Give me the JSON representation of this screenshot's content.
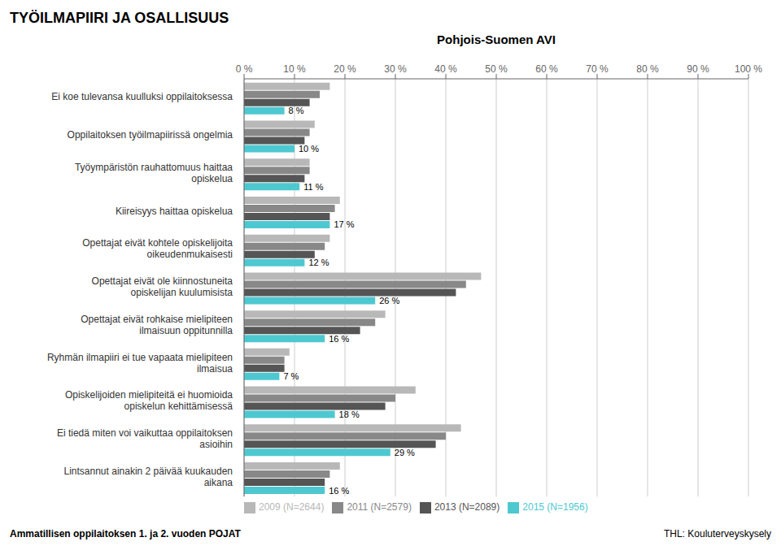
{
  "chart_data": {
    "type": "bar",
    "orientation": "horizontal",
    "title": "TYÖILMAPIIRI JA OSALLISUUS",
    "subtitle": "Pohjois-Suomen AVI",
    "categories": [
      "Ei koe tulevansa kuulluksi oppilaitoksessa",
      "Oppilaitoksen työilmapiirissä ongelmia",
      "Työympäristön rauhattomuus haittaa\nopiskelua",
      "Kiireisyys haittaa opiskelua",
      "Opettajat eivät kohtele opiskelijoita\noikeudenmukaisesti",
      "Opettajat eivät ole kiinnostuneita\nopiskelijan kuulumisista",
      "Opettajat eivät rohkaise mielipiteen\nilmaisuun oppitunnilla",
      "Ryhmän ilmapiiri ei tue vapaata mielipiteen\nilmaisua",
      "Opiskelijoiden mielipiteitä ei huomioida\nopiskelun kehittämisessä",
      "Ei tiedä miten voi vaikuttaa oppilaitoksen\nasioihin",
      "Lintsannut ainakin 2 päivää kuukauden\naikana"
    ],
    "series": [
      {
        "name": "2009 (N=2644)",
        "color": "#b8b8b8",
        "values": [
          17,
          14,
          13,
          19,
          17,
          47,
          28,
          9,
          34,
          43,
          19
        ]
      },
      {
        "name": "2011 (N=2579)",
        "color": "#888888",
        "values": [
          15,
          13,
          13,
          18,
          16,
          44,
          26,
          8,
          30,
          40,
          17
        ]
      },
      {
        "name": "2013 (N=2089)",
        "color": "#555555",
        "values": [
          13,
          12,
          12,
          17,
          14,
          42,
          23,
          8,
          28,
          38,
          16
        ]
      },
      {
        "name": "2015 (N=1956)",
        "color": "#4ec8d0",
        "values": [
          8,
          10,
          11,
          17,
          12,
          26,
          16,
          7,
          18,
          29,
          16
        ],
        "data_labels": true,
        "value_labels": [
          "8 %",
          "10 %",
          "11 %",
          "17 %",
          "12 %",
          "26 %",
          "16 %",
          "7 %",
          "18 %",
          "29 %",
          "16 %"
        ]
      }
    ],
    "xlim": [
      0,
      100
    ],
    "xticks": [
      {
        "value": 0,
        "label": "0 %"
      },
      {
        "value": 10,
        "label": "10 %"
      },
      {
        "value": 20,
        "label": "20 %"
      },
      {
        "value": 30,
        "label": "30 %"
      },
      {
        "value": 40,
        "label": "40 %"
      },
      {
        "value": 50,
        "label": "50 %"
      },
      {
        "value": 60,
        "label": "60 %"
      },
      {
        "value": 70,
        "label": "70 %"
      },
      {
        "value": 80,
        "label": "80 %"
      },
      {
        "value": 90,
        "label": "90 %"
      },
      {
        "value": 100,
        "label": "100 %"
      }
    ],
    "grid": true,
    "legend": "bottom",
    "annotations": [
      "Ammatillisen oppilaitoksen 1. ja 2. vuoden POJAT",
      "THL: Kouluterveyskysely"
    ]
  }
}
